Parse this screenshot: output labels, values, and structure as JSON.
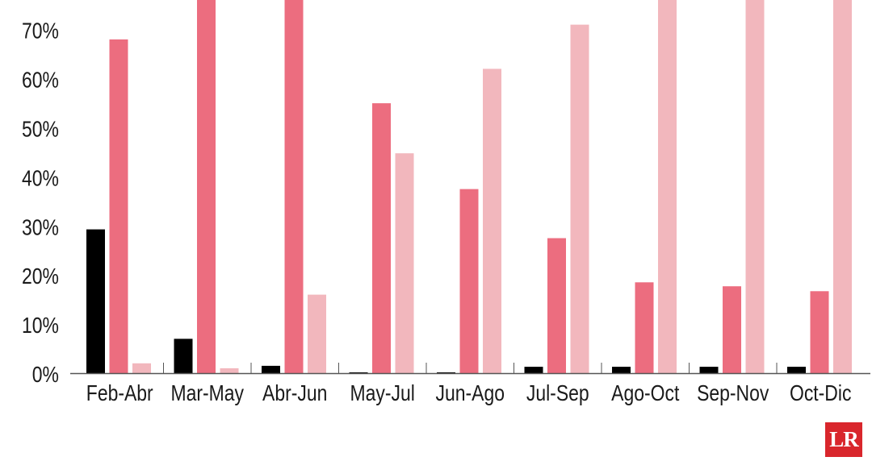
{
  "colors": {
    "series_1": "#000000",
    "series_2": "#ec6d7f",
    "series_3": "#f2b7bd",
    "axis": "#555555",
    "text": "#1a1a1a",
    "logo_bg": "#d9262c"
  },
  "logo": {
    "text": "LR"
  },
  "chart_data": {
    "type": "bar",
    "title": "",
    "xlabel": "",
    "ylabel": "",
    "ylim": [
      0,
      75
    ],
    "y_ticks": [
      "0%",
      "10%",
      "20%",
      "30%",
      "40%",
      "50%",
      "60%",
      "70%"
    ],
    "y_tick_values": [
      0,
      10,
      20,
      30,
      40,
      50,
      60,
      70
    ],
    "grid": false,
    "legend": "none",
    "categories": [
      "Feb-Abr",
      "Mar-May",
      "Abr-Jun",
      "May-Jul",
      "Jun-Ago",
      "Jul-Sep",
      "Ago-Oct",
      "Sep-Nov",
      "Oct-Dic"
    ],
    "series": [
      {
        "values": [
          29.3,
          7.0,
          1.5,
          0.1,
          0.1,
          1.3,
          1.3,
          1.3,
          1.3
        ]
      },
      {
        "values": [
          68.0,
          77.0,
          77.0,
          55.0,
          37.5,
          27.5,
          18.5,
          17.7,
          16.7
        ]
      },
      {
        "values": [
          2.0,
          1.0,
          16.0,
          44.8,
          62.0,
          71.0,
          77.0,
          77.0,
          77.0
        ]
      }
    ]
  }
}
